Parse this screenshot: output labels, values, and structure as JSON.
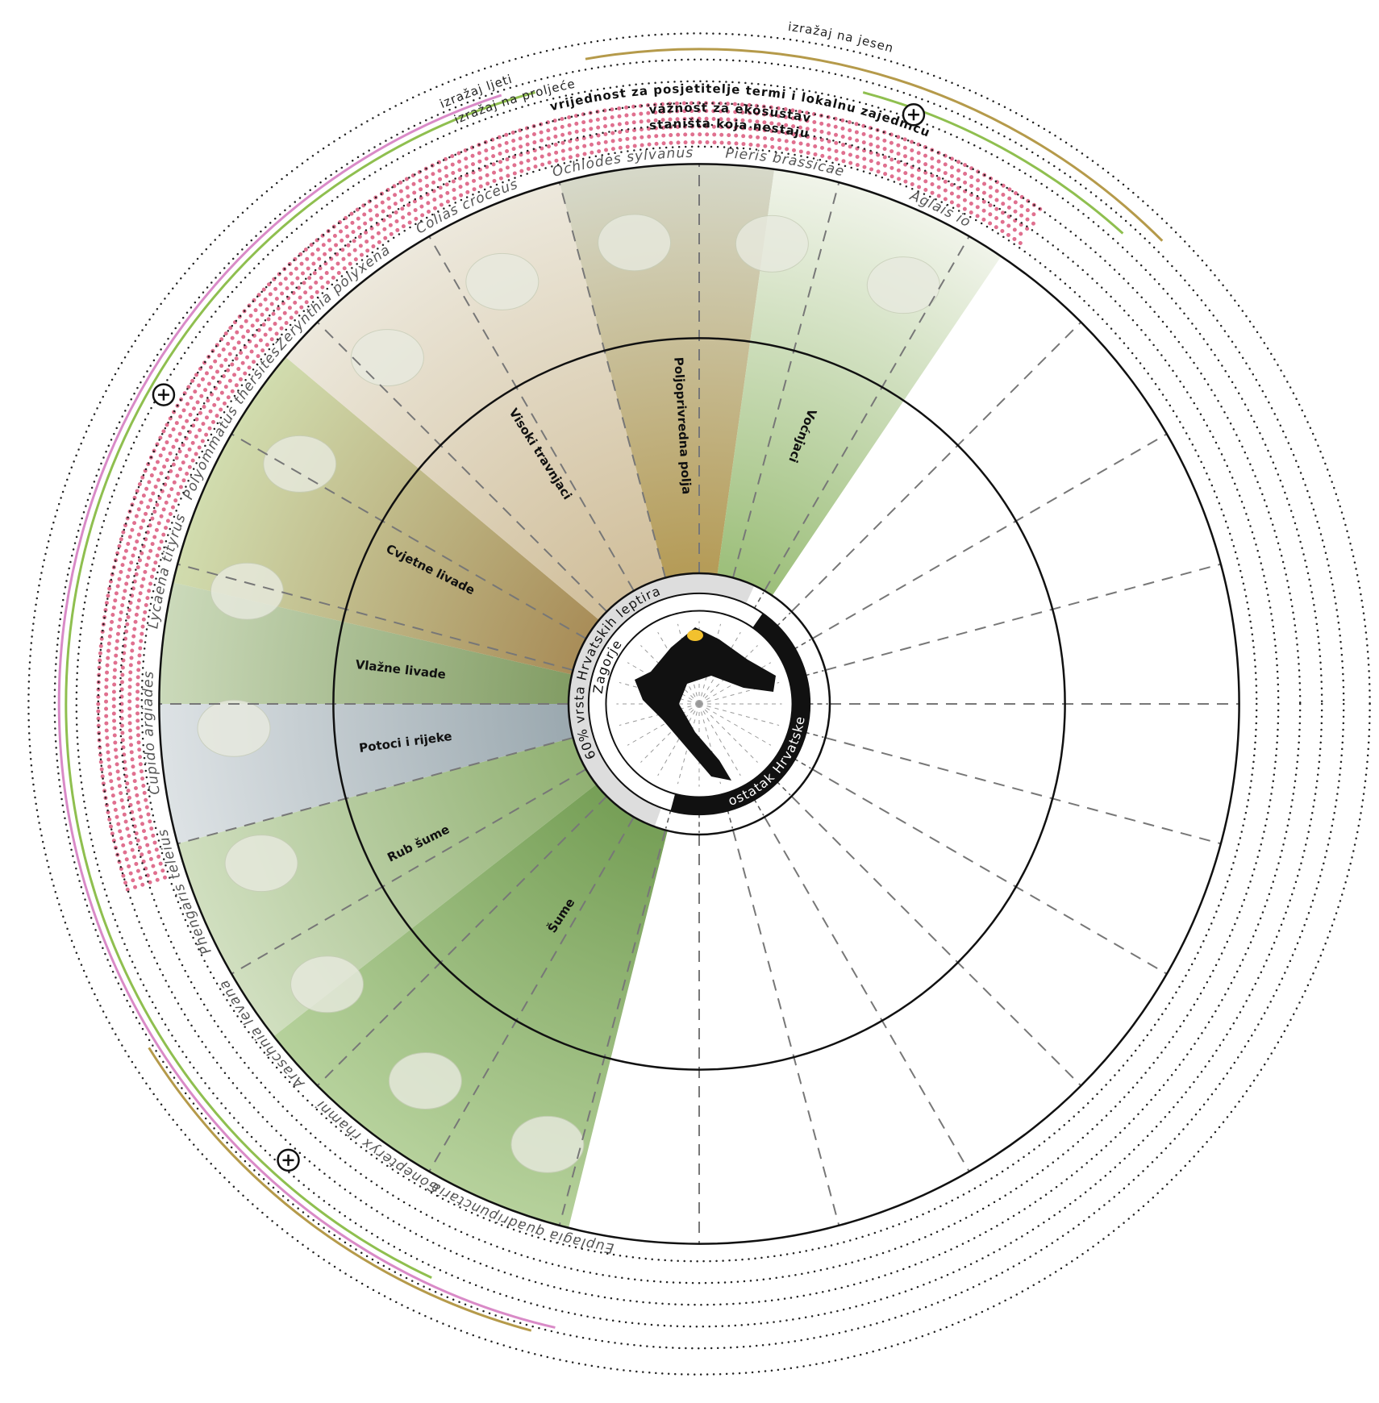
{
  "ring_labels": {
    "autumn": "izražaj na jesen",
    "summer": "izražaj ljeti",
    "spring": "izražaj na proljeće",
    "value": "vrijednost za posjetitelje termi i lokalnu zajednicu",
    "ecosystem": "važnost za ekosustav",
    "disappearing": "staništa koja nestaju"
  },
  "center": {
    "share": "60% vrsta Hrvatskih leptira",
    "region": "Zagorje",
    "rest": "ostatak Hrvatske"
  },
  "habitats": [
    "Šume",
    "Rub šume",
    "Potoci i rijeke",
    "Vlažne livade",
    "Cvjetne livade",
    "Visoki travnjaci",
    "Poljoprivredna polja",
    "Voćnjaci"
  ],
  "species": [
    "Euplagia quadripunctaria",
    "Gonepteryx rhamni",
    "Araschnia levana",
    "Phengaris teleius",
    "Cupido argiades",
    "Lycaena tityrus",
    "Polyommatus thersites",
    "Zerynthia polyxena",
    "Colias croceus",
    "Ochlodes sylvanus",
    "Pieris brassicae",
    "Aglais io"
  ]
}
